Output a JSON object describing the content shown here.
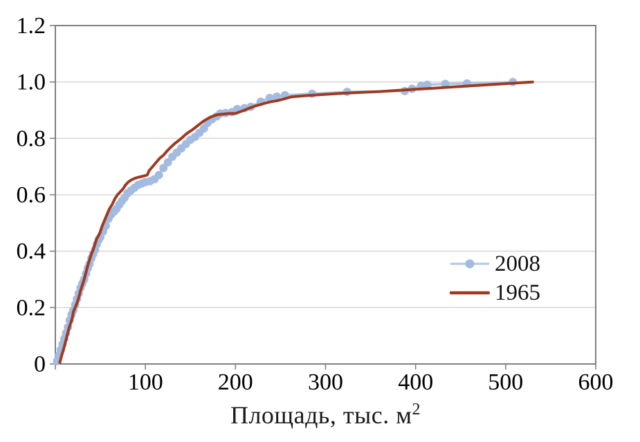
{
  "chart_data": {
    "type": "line",
    "title": "",
    "xlabel": "Площадь, тыс. м²",
    "xlabel_parts": {
      "base": "Площадь, тыс. м",
      "sup": "2"
    },
    "ylabel": "",
    "xlim": [
      0,
      600
    ],
    "ylim": [
      0,
      1.2
    ],
    "x_ticks": [
      0,
      100,
      200,
      300,
      400,
      500,
      600
    ],
    "x_tick_labels": [
      "100",
      "200",
      "300",
      "400",
      "500",
      "600"
    ],
    "x_label_ticks": [
      100,
      200,
      300,
      400,
      500,
      600
    ],
    "y_ticks": [
      0,
      0.2,
      0.4,
      0.6,
      0.8,
      1.0,
      1.2
    ],
    "y_tick_labels": [
      "0",
      "0.2",
      "0.4",
      "0.6",
      "0.8",
      "1.0",
      "1.2"
    ],
    "grid": "horizontal-only",
    "legend_position": "inside-right-middle",
    "colors": {
      "frame": "#7f7f7f",
      "gridline": "#d9d9d9",
      "text": "#000000",
      "background": "#ffffff"
    },
    "series": [
      {
        "name": "2008",
        "style": "line+markers",
        "marker": "circle",
        "color": "#aec6e8",
        "marker_color": "#a3bbe0",
        "line_width": 3.5,
        "marker_radius": 6,
        "points": [
          [
            2,
            0.01
          ],
          [
            4,
            0.03
          ],
          [
            6,
            0.05
          ],
          [
            8,
            0.07
          ],
          [
            10,
            0.09
          ],
          [
            12,
            0.11
          ],
          [
            14,
            0.13
          ],
          [
            16,
            0.155
          ],
          [
            18,
            0.175
          ],
          [
            20,
            0.19
          ],
          [
            22,
            0.21
          ],
          [
            24,
            0.23
          ],
          [
            26,
            0.25
          ],
          [
            28,
            0.27
          ],
          [
            30,
            0.285
          ],
          [
            32,
            0.3
          ],
          [
            34,
            0.32
          ],
          [
            36,
            0.34
          ],
          [
            38,
            0.355
          ],
          [
            40,
            0.375
          ],
          [
            42,
            0.39
          ],
          [
            44,
            0.405
          ],
          [
            46,
            0.425
          ],
          [
            48,
            0.44
          ],
          [
            50,
            0.45
          ],
          [
            53,
            0.47
          ],
          [
            56,
            0.49
          ],
          [
            59,
            0.515
          ],
          [
            62,
            0.53
          ],
          [
            65,
            0.54
          ],
          [
            68,
            0.55
          ],
          [
            71,
            0.565
          ],
          [
            74,
            0.578
          ],
          [
            77,
            0.59
          ],
          [
            80,
            0.605
          ],
          [
            84,
            0.615
          ],
          [
            88,
            0.625
          ],
          [
            92,
            0.635
          ],
          [
            96,
            0.64
          ],
          [
            100,
            0.645
          ],
          [
            105,
            0.648
          ],
          [
            110,
            0.655
          ],
          [
            115,
            0.67
          ],
          [
            120,
            0.695
          ],
          [
            125,
            0.715
          ],
          [
            130,
            0.735
          ],
          [
            135,
            0.75
          ],
          [
            140,
            0.765
          ],
          [
            145,
            0.78
          ],
          [
            150,
            0.795
          ],
          [
            155,
            0.805
          ],
          [
            160,
            0.82
          ],
          [
            165,
            0.835
          ],
          [
            169,
            0.855
          ],
          [
            174,
            0.868
          ],
          [
            179,
            0.878
          ],
          [
            183,
            0.888
          ],
          [
            189,
            0.89
          ],
          [
            196,
            0.893
          ],
          [
            202,
            0.904
          ],
          [
            210,
            0.907
          ],
          [
            217,
            0.912
          ],
          [
            228,
            0.93
          ],
          [
            238,
            0.943
          ],
          [
            246,
            0.948
          ],
          [
            255,
            0.953
          ],
          [
            285,
            0.958
          ],
          [
            324,
            0.965
          ],
          [
            388,
            0.968
          ],
          [
            396,
            0.976
          ],
          [
            406,
            0.986
          ],
          [
            413,
            0.99
          ],
          [
            433,
            0.993
          ],
          [
            457,
            0.995
          ],
          [
            508,
            1.0
          ]
        ]
      },
      {
        "name": "1965",
        "style": "line",
        "marker": "none",
        "color": "#9e3a20",
        "line_width": 4,
        "points": [
          [
            5,
            0.005
          ],
          [
            7,
            0.03
          ],
          [
            9,
            0.05
          ],
          [
            11,
            0.075
          ],
          [
            13,
            0.1
          ],
          [
            15,
            0.125
          ],
          [
            17,
            0.145
          ],
          [
            19,
            0.165
          ],
          [
            20,
            0.185
          ],
          [
            22,
            0.2
          ],
          [
            24,
            0.215
          ],
          [
            26,
            0.235
          ],
          [
            28,
            0.26
          ],
          [
            30,
            0.28
          ],
          [
            32,
            0.3
          ],
          [
            34,
            0.325
          ],
          [
            36,
            0.35
          ],
          [
            38,
            0.37
          ],
          [
            40,
            0.39
          ],
          [
            42,
            0.405
          ],
          [
            44,
            0.425
          ],
          [
            46,
            0.445
          ],
          [
            48,
            0.455
          ],
          [
            50,
            0.47
          ],
          [
            52,
            0.49
          ],
          [
            54,
            0.505
          ],
          [
            56,
            0.52
          ],
          [
            58,
            0.535
          ],
          [
            60,
            0.55
          ],
          [
            63,
            0.565
          ],
          [
            66,
            0.585
          ],
          [
            69,
            0.6
          ],
          [
            72,
            0.61
          ],
          [
            75,
            0.62
          ],
          [
            78,
            0.635
          ],
          [
            81,
            0.645
          ],
          [
            84,
            0.652
          ],
          [
            88,
            0.658
          ],
          [
            92,
            0.662
          ],
          [
            96,
            0.665
          ],
          [
            100,
            0.668
          ],
          [
            102,
            0.67
          ],
          [
            104,
            0.685
          ],
          [
            108,
            0.7
          ],
          [
            112,
            0.715
          ],
          [
            116,
            0.73
          ],
          [
            120,
            0.74
          ],
          [
            124,
            0.755
          ],
          [
            128,
            0.768
          ],
          [
            132,
            0.78
          ],
          [
            136,
            0.79
          ],
          [
            140,
            0.8
          ],
          [
            144,
            0.812
          ],
          [
            148,
            0.822
          ],
          [
            152,
            0.83
          ],
          [
            156,
            0.84
          ],
          [
            160,
            0.85
          ],
          [
            164,
            0.86
          ],
          [
            168,
            0.868
          ],
          [
            172,
            0.875
          ],
          [
            176,
            0.88
          ],
          [
            180,
            0.884
          ],
          [
            186,
            0.886
          ],
          [
            193,
            0.888
          ],
          [
            200,
            0.888
          ],
          [
            204,
            0.893
          ],
          [
            210,
            0.9
          ],
          [
            216,
            0.908
          ],
          [
            222,
            0.915
          ],
          [
            228,
            0.92
          ],
          [
            234,
            0.926
          ],
          [
            240,
            0.93
          ],
          [
            247,
            0.934
          ],
          [
            254,
            0.94
          ],
          [
            262,
            0.947
          ],
          [
            272,
            0.95
          ],
          [
            285,
            0.953
          ],
          [
            300,
            0.956
          ],
          [
            320,
            0.96
          ],
          [
            340,
            0.963
          ],
          [
            360,
            0.966
          ],
          [
            380,
            0.97
          ],
          [
            400,
            0.974
          ],
          [
            420,
            0.978
          ],
          [
            440,
            0.982
          ],
          [
            460,
            0.986
          ],
          [
            480,
            0.99
          ],
          [
            500,
            0.994
          ],
          [
            515,
            0.997
          ],
          [
            530,
            1.0
          ]
        ]
      }
    ]
  }
}
